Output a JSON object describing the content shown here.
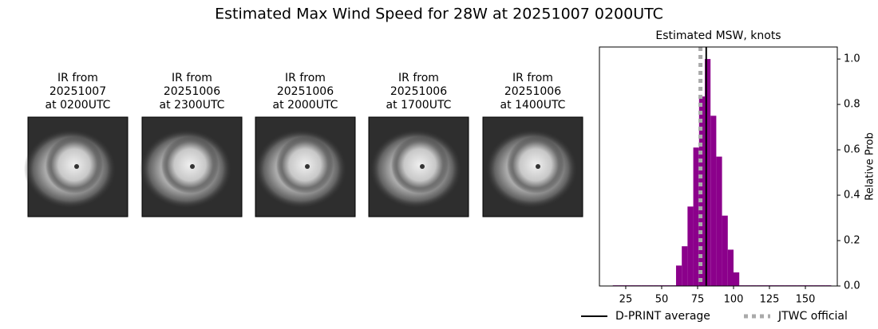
{
  "title": "Estimated Max Wind Speed for 28W at 20251007 0200UTC",
  "panels": [
    {
      "title": [
        "IR from",
        "20251007",
        "at 0200UTC"
      ]
    },
    {
      "title": [
        "IR from",
        "20251006",
        "at 2300UTC"
      ]
    },
    {
      "title": [
        "IR from",
        "20251006",
        "at 2000UTC"
      ]
    },
    {
      "title": [
        "IR from",
        "20251006",
        "at 1700UTC"
      ]
    },
    {
      "title": [
        "IR from",
        "20251006",
        "at 1400UTC"
      ]
    }
  ],
  "chart_data": {
    "type": "histogram",
    "title": "Estimated MSW, knots",
    "ylabel": "Relative Prob",
    "bins": [
      16,
      20,
      24,
      28,
      32,
      36,
      40,
      44,
      48,
      52,
      56,
      60,
      64,
      68,
      72,
      76,
      80,
      84,
      88,
      92,
      96,
      100,
      104,
      108,
      112,
      116,
      120,
      124,
      128,
      132,
      136,
      140,
      144,
      148,
      152,
      156,
      160,
      164,
      168
    ],
    "values": [
      0.003,
      0.003,
      0.003,
      0.003,
      0.003,
      0.003,
      0.003,
      0.003,
      0.003,
      0.003,
      0.003,
      0.09,
      0.175,
      0.35,
      0.61,
      0.835,
      1.0,
      0.75,
      0.57,
      0.31,
      0.16,
      0.06,
      0.003,
      0.003,
      0.003,
      0.003,
      0.003,
      0.003,
      0.003,
      0.003,
      0.003,
      0.003,
      0.003,
      0.003,
      0.003,
      0.003,
      0.003,
      0.003
    ],
    "color": "#8b008b",
    "xlim": [
      6.7,
      172.2
    ],
    "xticks": [
      25,
      50,
      75,
      100,
      125,
      150
    ],
    "ylim": [
      0,
      1.053
    ],
    "yticks": [
      {
        "value": 0,
        "label": "0.0"
      },
      0.2,
      0.4,
      0.6,
      0.8,
      {
        "value": 1,
        "label": "1.0"
      }
    ],
    "lines": [
      {
        "name": "D-PRINT average",
        "value": 81,
        "color": "#000000",
        "style": "solid"
      },
      {
        "name": "JTWC official",
        "value": 77,
        "color": "#aaaaaa",
        "style": "dotted"
      }
    ]
  }
}
